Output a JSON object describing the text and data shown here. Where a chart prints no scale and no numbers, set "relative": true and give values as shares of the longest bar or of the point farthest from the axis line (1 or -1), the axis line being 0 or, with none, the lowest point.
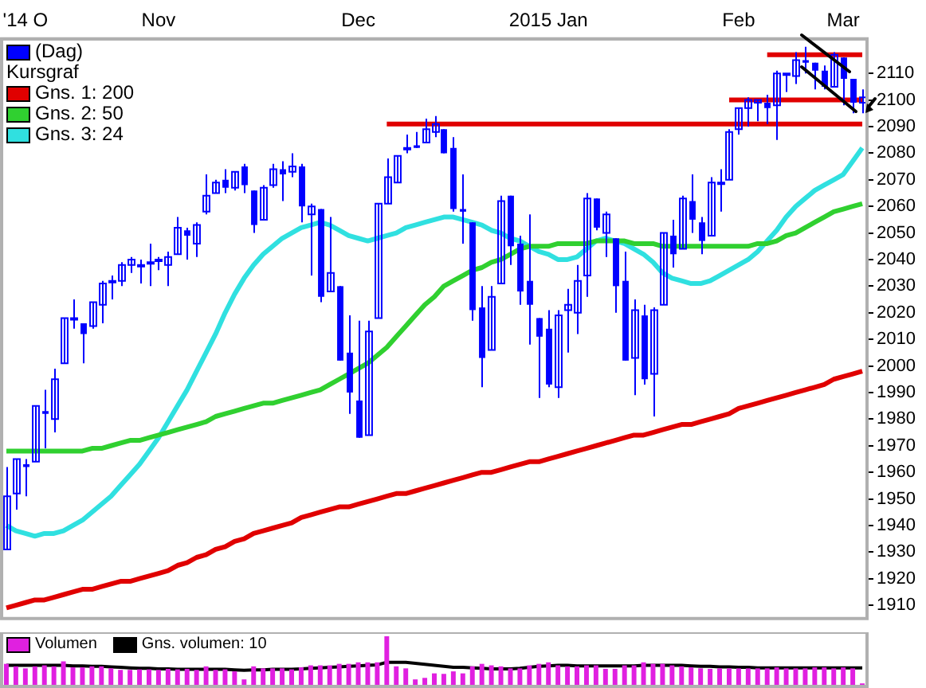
{
  "chart_data": [
    {
      "type": "candlestick",
      "legend": "top left",
      "legend_title": "Kursgraf",
      "categories": [
        null,
        null,
        "'14 O",
        null,
        null,
        null,
        null,
        null,
        null,
        null,
        null,
        null,
        null,
        null,
        null,
        null,
        "Nov",
        null,
        null,
        null,
        null,
        null,
        null,
        null,
        null,
        null,
        null,
        null,
        null,
        null,
        null,
        null,
        null,
        null,
        null,
        null,
        null,
        "Dec",
        null,
        null,
        null,
        null,
        null,
        null,
        null,
        null,
        null,
        null,
        null,
        null,
        null,
        null,
        null,
        null,
        null,
        null,
        null,
        "2015 Jan",
        null,
        null,
        null,
        null,
        null,
        null,
        null,
        null,
        null,
        null,
        null,
        null,
        null,
        null,
        null,
        null,
        null,
        null,
        null,
        "Feb",
        null,
        null,
        null,
        null,
        null,
        null,
        null,
        null,
        null,
        null,
        "Mar",
        null,
        null
      ],
      "ylim": [
        1905,
        2123
      ],
      "yticks": [
        1910,
        1920,
        1930,
        1940,
        1950,
        1960,
        1970,
        1980,
        1990,
        2000,
        2010,
        2020,
        2030,
        2040,
        2050,
        2060,
        2070,
        2080,
        2090,
        2100,
        2110
      ],
      "series": [
        {
          "type": "line",
          "color": "#e00000",
          "values": [
            null,
            null,
            null,
            null,
            null,
            null,
            null,
            null,
            null,
            null,
            null,
            null,
            null,
            null,
            null,
            null,
            null,
            null,
            null,
            null,
            null,
            null,
            null,
            null,
            null,
            null,
            null,
            null,
            null,
            null,
            null,
            null,
            null,
            null,
            null,
            null,
            null,
            null,
            null,
            null,
            2091,
            2091,
            2091,
            2091,
            2091,
            2091,
            2091,
            2091,
            2091,
            2091,
            2091,
            2091,
            2091,
            2091,
            2091,
            2091,
            2091,
            2091,
            2091,
            2091,
            2091,
            2091,
            2091,
            2091,
            2091,
            2091,
            2091,
            2091,
            2091,
            2091,
            2091,
            2091,
            2091,
            2091,
            2091,
            2091,
            2091,
            2091,
            2091,
            2091,
            2091,
            2091,
            2091,
            2091,
            2091,
            2091,
            2091,
            2091,
            2091,
            2091,
            2091
          ]
        },
        {
          "type": "line",
          "color": "#e00000",
          "values": [
            null,
            null,
            null,
            null,
            null,
            null,
            null,
            null,
            null,
            null,
            null,
            null,
            null,
            null,
            null,
            null,
            null,
            null,
            null,
            null,
            null,
            null,
            null,
            null,
            null,
            null,
            null,
            null,
            null,
            null,
            null,
            null,
            null,
            null,
            null,
            null,
            null,
            null,
            null,
            null,
            null,
            null,
            null,
            null,
            null,
            null,
            null,
            null,
            null,
            null,
            null,
            null,
            null,
            null,
            null,
            null,
            null,
            null,
            null,
            null,
            null,
            null,
            null,
            null,
            null,
            null,
            null,
            null,
            null,
            null,
            null,
            null,
            null,
            null,
            null,
            null,
            2100,
            2100,
            2100,
            2100,
            2100,
            2100,
            2100,
            2100,
            2100,
            2100,
            2100,
            2100,
            2100,
            2100,
            2100
          ]
        },
        {
          "type": "line",
          "color": "#e00000",
          "values": [
            null,
            null,
            null,
            null,
            null,
            null,
            null,
            null,
            null,
            null,
            null,
            null,
            null,
            null,
            null,
            null,
            null,
            null,
            null,
            null,
            null,
            null,
            null,
            null,
            null,
            null,
            null,
            null,
            null,
            null,
            null,
            null,
            null,
            null,
            null,
            null,
            null,
            null,
            null,
            null,
            null,
            null,
            null,
            null,
            null,
            null,
            null,
            null,
            null,
            null,
            null,
            null,
            null,
            null,
            null,
            null,
            null,
            null,
            null,
            null,
            null,
            null,
            null,
            null,
            null,
            null,
            null,
            null,
            null,
            null,
            null,
            null,
            null,
            null,
            null,
            null,
            null,
            null,
            null,
            null,
            2117,
            2117,
            2117,
            2117,
            2117,
            2117,
            2117,
            2117,
            2117,
            2117,
            2117
          ]
        },
        {
          "name": "(Dag)",
          "type": "candlestick",
          "color": "#0000ff",
          "ohlc": [
            [
              1931,
              1962,
              1931,
              1951
            ],
            [
              1952,
              1965,
              1946,
              1965
            ],
            [
              1963,
              1965,
              1951,
              1962
            ],
            [
              1964,
              1985,
              1964,
              1985
            ],
            [
              1983,
              1991,
              1969,
              1982
            ],
            [
              1980,
              1999,
              1975,
              1995
            ],
            [
              2001,
              2018,
              2001,
              2018
            ],
            [
              2018,
              2025,
              2014,
              2018
            ],
            [
              2016,
              2016,
              2001,
              2012
            ],
            [
              2015,
              2024,
              2014,
              2024
            ],
            [
              2023,
              2032,
              2016,
              2031
            ],
            [
              2032,
              2034,
              2025,
              2032
            ],
            [
              2032,
              2039,
              2030,
              2038
            ],
            [
              2038,
              2041,
              2035,
              2040
            ],
            [
              2038,
              2040,
              2031,
              2038
            ],
            [
              2039,
              2046,
              2030,
              2039
            ],
            [
              2040,
              2041,
              2036,
              2040
            ],
            [
              2038,
              2043,
              2030,
              2041
            ],
            [
              2042,
              2056,
              2042,
              2052
            ],
            [
              2051,
              2052,
              2040,
              2049
            ],
            [
              2046,
              2054,
              2041,
              2053
            ],
            [
              2058,
              2072,
              2057,
              2064
            ],
            [
              2065,
              2070,
              2065,
              2069
            ],
            [
              2070,
              2074,
              2065,
              2067
            ],
            [
              2067,
              2073,
              2066,
              2073
            ],
            [
              2075,
              2076,
              2065,
              2068
            ],
            [
              2066,
              2066,
              2050,
              2053
            ],
            [
              2055,
              2068,
              2055,
              2067
            ],
            [
              2068,
              2076,
              2067,
              2074
            ],
            [
              2074,
              2077,
              2062,
              2072
            ],
            [
              2073,
              2080,
              2071,
              2075
            ],
            [
              2075,
              2076,
              2054,
              2060
            ],
            [
              2057,
              2061,
              2034,
              2060
            ],
            [
              2059,
              2059,
              2024,
              2026
            ],
            [
              2028,
              2056,
              2028,
              2035
            ],
            [
              2030,
              2030,
              2002,
              2002
            ],
            [
              2005,
              2019,
              1982,
              1990
            ],
            [
              1987,
              2017,
              1973,
              1973
            ],
            [
              1974,
              2017,
              1974,
              2013
            ],
            [
              2018,
              2061,
              2018,
              2061
            ],
            [
              2061,
              2078,
              2061,
              2071
            ],
            [
              2069,
              2079,
              2069,
              2079
            ],
            [
              2082,
              2087,
              2080,
              2082
            ],
            [
              2083,
              2088,
              2082,
              2082
            ],
            [
              2084,
              2093,
              2084,
              2089
            ],
            [
              2088,
              2094,
              2086,
              2091
            ],
            [
              2089,
              2089,
              2080,
              2080
            ],
            [
              2082,
              2086,
              2058,
              2059
            ],
            [
              2059,
              2072,
              2046,
              2058
            ],
            [
              2054,
              2054,
              2017,
              2021
            ],
            [
              2022,
              2030,
              1992,
              2003
            ],
            [
              2006,
              2030,
              2006,
              2026
            ],
            [
              2031,
              2064,
              2031,
              2062
            ],
            [
              2064,
              2064,
              2038,
              2045
            ],
            [
              2046,
              2049,
              2023,
              2028
            ],
            [
              2032,
              2057,
              2008,
              2023
            ],
            [
              2018,
              2018,
              1988,
              2011
            ],
            [
              2014,
              2021,
              1992,
              1993
            ],
            [
              1992,
              2021,
              1988,
              2019
            ],
            [
              2021,
              2029,
              2005,
              2023
            ],
            [
              2020,
              2038,
              2012,
              2032
            ],
            [
              2034,
              2065,
              2026,
              2063
            ],
            [
              2063,
              2063,
              2051,
              2052
            ],
            [
              2050,
              2058,
              2041,
              2057
            ],
            [
              2048,
              2048,
              2020,
              2030
            ],
            [
              2032,
              2043,
              2002,
              2002
            ],
            [
              2003,
              2025,
              1989,
              2021
            ],
            [
              2019,
              2023,
              1993,
              1995
            ],
            [
              1997,
              2022,
              1981,
              2021
            ],
            [
              2023,
              2050,
              2023,
              2050
            ],
            [
              2049,
              2055,
              2037,
              2042
            ],
            [
              2044,
              2064,
              2044,
              2063
            ],
            [
              2062,
              2072,
              2050,
              2055
            ],
            [
              2054,
              2056,
              2042,
              2047
            ],
            [
              2049,
              2071,
              2049,
              2069
            ],
            [
              2069,
              2074,
              2058,
              2069
            ],
            [
              2070,
              2089,
              2070,
              2088
            ],
            [
              2089,
              2097,
              2087,
              2097
            ],
            [
              2097,
              2101,
              2090,
              2100
            ],
            [
              2099,
              2100,
              2092,
              2100
            ],
            [
              2099,
              2102,
              2091,
              2097
            ],
            [
              2098,
              2111,
              2085,
              2110
            ],
            [
              2110,
              2110,
              2103,
              2110
            ],
            [
              2109,
              2118,
              2106,
              2115
            ],
            [
              2115,
              2120,
              2110,
              2114
            ],
            [
              2114,
              2114,
              2104,
              2111
            ],
            [
              2111,
              2113,
              2104,
              2105
            ],
            [
              2105,
              2118,
              2105,
              2117
            ],
            [
              2116,
              2116,
              2098,
              2108
            ],
            [
              2108,
              2108,
              2095,
              2099
            ],
            [
              2099,
              2104,
              2095,
              2101
            ]
          ]
        },
        {
          "name": "Gns. 1: 200",
          "type": "line",
          "color": "#e00000",
          "values": [
            1909,
            1910,
            1911,
            1912,
            1912,
            1913,
            1914,
            1915,
            1916,
            1916,
            1917,
            1918,
            1919,
            1919,
            1920,
            1921,
            1922,
            1923,
            1925,
            1926,
            1928,
            1929,
            1931,
            1932,
            1934,
            1935,
            1937,
            1938,
            1939,
            1940,
            1941,
            1943,
            1944,
            1945,
            1946,
            1947,
            1947,
            1948,
            1949,
            1950,
            1951,
            1952,
            1952,
            1953,
            1954,
            1955,
            1956,
            1957,
            1958,
            1959,
            1960,
            1960,
            1961,
            1962,
            1963,
            1964,
            1964,
            1965,
            1966,
            1967,
            1968,
            1969,
            1970,
            1971,
            1972,
            1973,
            1974,
            1974,
            1975,
            1976,
            1977,
            1978,
            1978,
            1979,
            1980,
            1981,
            1982,
            1984,
            1985,
            1986,
            1987,
            1988,
            1989,
            1990,
            1991,
            1992,
            1993,
            1995,
            1996,
            1997,
            1998
          ]
        },
        {
          "name": "Gns. 2: 50",
          "type": "line",
          "color": "#30d030",
          "values": [
            1968,
            1968,
            1968,
            1968,
            1968,
            1968,
            1968,
            1968,
            1968,
            1969,
            1969,
            1970,
            1971,
            1972,
            1972,
            1973,
            1974,
            1975,
            1976,
            1977,
            1978,
            1979,
            1981,
            1982,
            1983,
            1984,
            1985,
            1986,
            1986,
            1987,
            1988,
            1989,
            1990,
            1991,
            1993,
            1995,
            1997,
            1999,
            2001,
            2004,
            2007,
            2011,
            2015,
            2019,
            2023,
            2026,
            2030,
            2032,
            2034,
            2036,
            2037,
            2039,
            2040,
            2042,
            2044,
            2045,
            2045,
            2045,
            2046,
            2046,
            2046,
            2046,
            2047,
            2047,
            2047,
            2047,
            2046,
            2046,
            2046,
            2045,
            2045,
            2045,
            2045,
            2045,
            2045,
            2045,
            2045,
            2045,
            2045,
            2046,
            2046,
            2047,
            2049,
            2050,
            2052,
            2054,
            2056,
            2058,
            2059,
            2060,
            2061
          ]
        },
        {
          "name": "Gns. 3: 24",
          "type": "line",
          "color": "#30e0e0",
          "values": [
            1940,
            1938,
            1937,
            1936,
            1937,
            1937,
            1938,
            1940,
            1942,
            1945,
            1948,
            1951,
            1955,
            1959,
            1963,
            1968,
            1973,
            1979,
            1985,
            1991,
            1998,
            2005,
            2012,
            2020,
            2027,
            2033,
            2038,
            2042,
            2045,
            2048,
            2050,
            2052,
            2053,
            2054,
            2053,
            2051,
            2049,
            2048,
            2047,
            2048,
            2049,
            2050,
            2052,
            2053,
            2054,
            2055,
            2056,
            2056,
            2055,
            2054,
            2053,
            2051,
            2050,
            2048,
            2047,
            2045,
            2043,
            2042,
            2040,
            2040,
            2041,
            2044,
            2047,
            2048,
            2047,
            2046,
            2044,
            2042,
            2039,
            2035,
            2033,
            2032,
            2031,
            2031,
            2032,
            2034,
            2036,
            2038,
            2040,
            2043,
            2047,
            2051,
            2056,
            2060,
            2063,
            2066,
            2068,
            2070,
            2072,
            2077,
            2082
          ]
        }
      ]
    },
    {
      "type": "bar",
      "relative": true,
      "legend": "top left",
      "tick_labels": false,
      "categories": [
        null,
        null,
        null,
        null,
        null,
        null,
        null,
        null,
        null,
        null,
        null,
        null,
        null,
        null,
        null,
        null,
        null,
        null,
        null,
        null,
        null,
        null,
        null,
        null,
        null,
        null,
        null,
        null,
        null,
        null,
        null,
        null,
        null,
        null,
        null,
        null,
        null,
        null,
        null,
        null,
        null,
        null,
        null,
        null,
        null,
        null,
        null,
        null,
        null,
        null,
        null,
        null,
        null,
        null,
        null,
        null,
        null,
        null,
        null,
        null,
        null,
        null,
        null,
        null,
        null,
        null,
        null,
        null,
        null,
        null,
        null,
        null,
        null,
        null,
        null,
        null,
        null,
        null,
        null,
        null,
        null,
        null,
        null,
        null,
        null,
        null,
        null,
        null,
        null,
        null,
        null
      ],
      "series": [
        {
          "name": "Volumen",
          "color": "#e020e0",
          "values": [
            0.45,
            0.4,
            0.36,
            0.4,
            0.42,
            0.4,
            0.5,
            0.38,
            0.38,
            0.4,
            0.4,
            0.36,
            0.33,
            0.33,
            0.34,
            0.34,
            0.33,
            0.35,
            0.34,
            0.35,
            0.33,
            0.4,
            0.33,
            0.34,
            0.3,
            0.14,
            0.4,
            0.36,
            0.36,
            0.36,
            0.34,
            0.38,
            0.42,
            0.42,
            0.42,
            0.45,
            0.45,
            0.48,
            0.48,
            0.48,
            1,
            0.4,
            0.36,
            0.14,
            0.17,
            0.26,
            0.25,
            0.3,
            0.26,
            0.4,
            0.45,
            0.42,
            0.4,
            0.36,
            0.36,
            0.42,
            0.45,
            0.48,
            0.42,
            0.4,
            0.4,
            0.42,
            0.42,
            0.35,
            0.35,
            0.42,
            0.42,
            0.48,
            0.45,
            0.45,
            0.42,
            0.4,
            0.38,
            0.36,
            0.35,
            0.36,
            0.36,
            0.36,
            0.36,
            0.36,
            0.36,
            0.38,
            0.36,
            0.36,
            0.36,
            0.38,
            0.38,
            0.36,
            0.38,
            0.36,
            0.06
          ]
        },
        {
          "name": "Gns. volumen: 10",
          "type": "line",
          "color": "#000000",
          "values": [
            0.42,
            0.42,
            0.42,
            0.42,
            0.42,
            0.42,
            0.42,
            0.41,
            0.41,
            0.4,
            0.4,
            0.39,
            0.38,
            0.37,
            0.36,
            0.36,
            0.35,
            0.35,
            0.34,
            0.34,
            0.34,
            0.34,
            0.34,
            0.34,
            0.33,
            0.32,
            0.33,
            0.33,
            0.34,
            0.34,
            0.34,
            0.35,
            0.36,
            0.37,
            0.38,
            0.39,
            0.4,
            0.41,
            0.42,
            0.43,
            0.48,
            0.48,
            0.48,
            0.46,
            0.44,
            0.42,
            0.4,
            0.38,
            0.38,
            0.37,
            0.36,
            0.35,
            0.35,
            0.35,
            0.36,
            0.38,
            0.4,
            0.41,
            0.42,
            0.42,
            0.41,
            0.41,
            0.41,
            0.41,
            0.41,
            0.41,
            0.41,
            0.42,
            0.42,
            0.42,
            0.42,
            0.42,
            0.41,
            0.4,
            0.4,
            0.39,
            0.39,
            0.38,
            0.38,
            0.37,
            0.37,
            0.37,
            0.37,
            0.37,
            0.37,
            0.37,
            0.37,
            0.37,
            0.37,
            0.37,
            0.37
          ]
        }
      ]
    }
  ]
}
